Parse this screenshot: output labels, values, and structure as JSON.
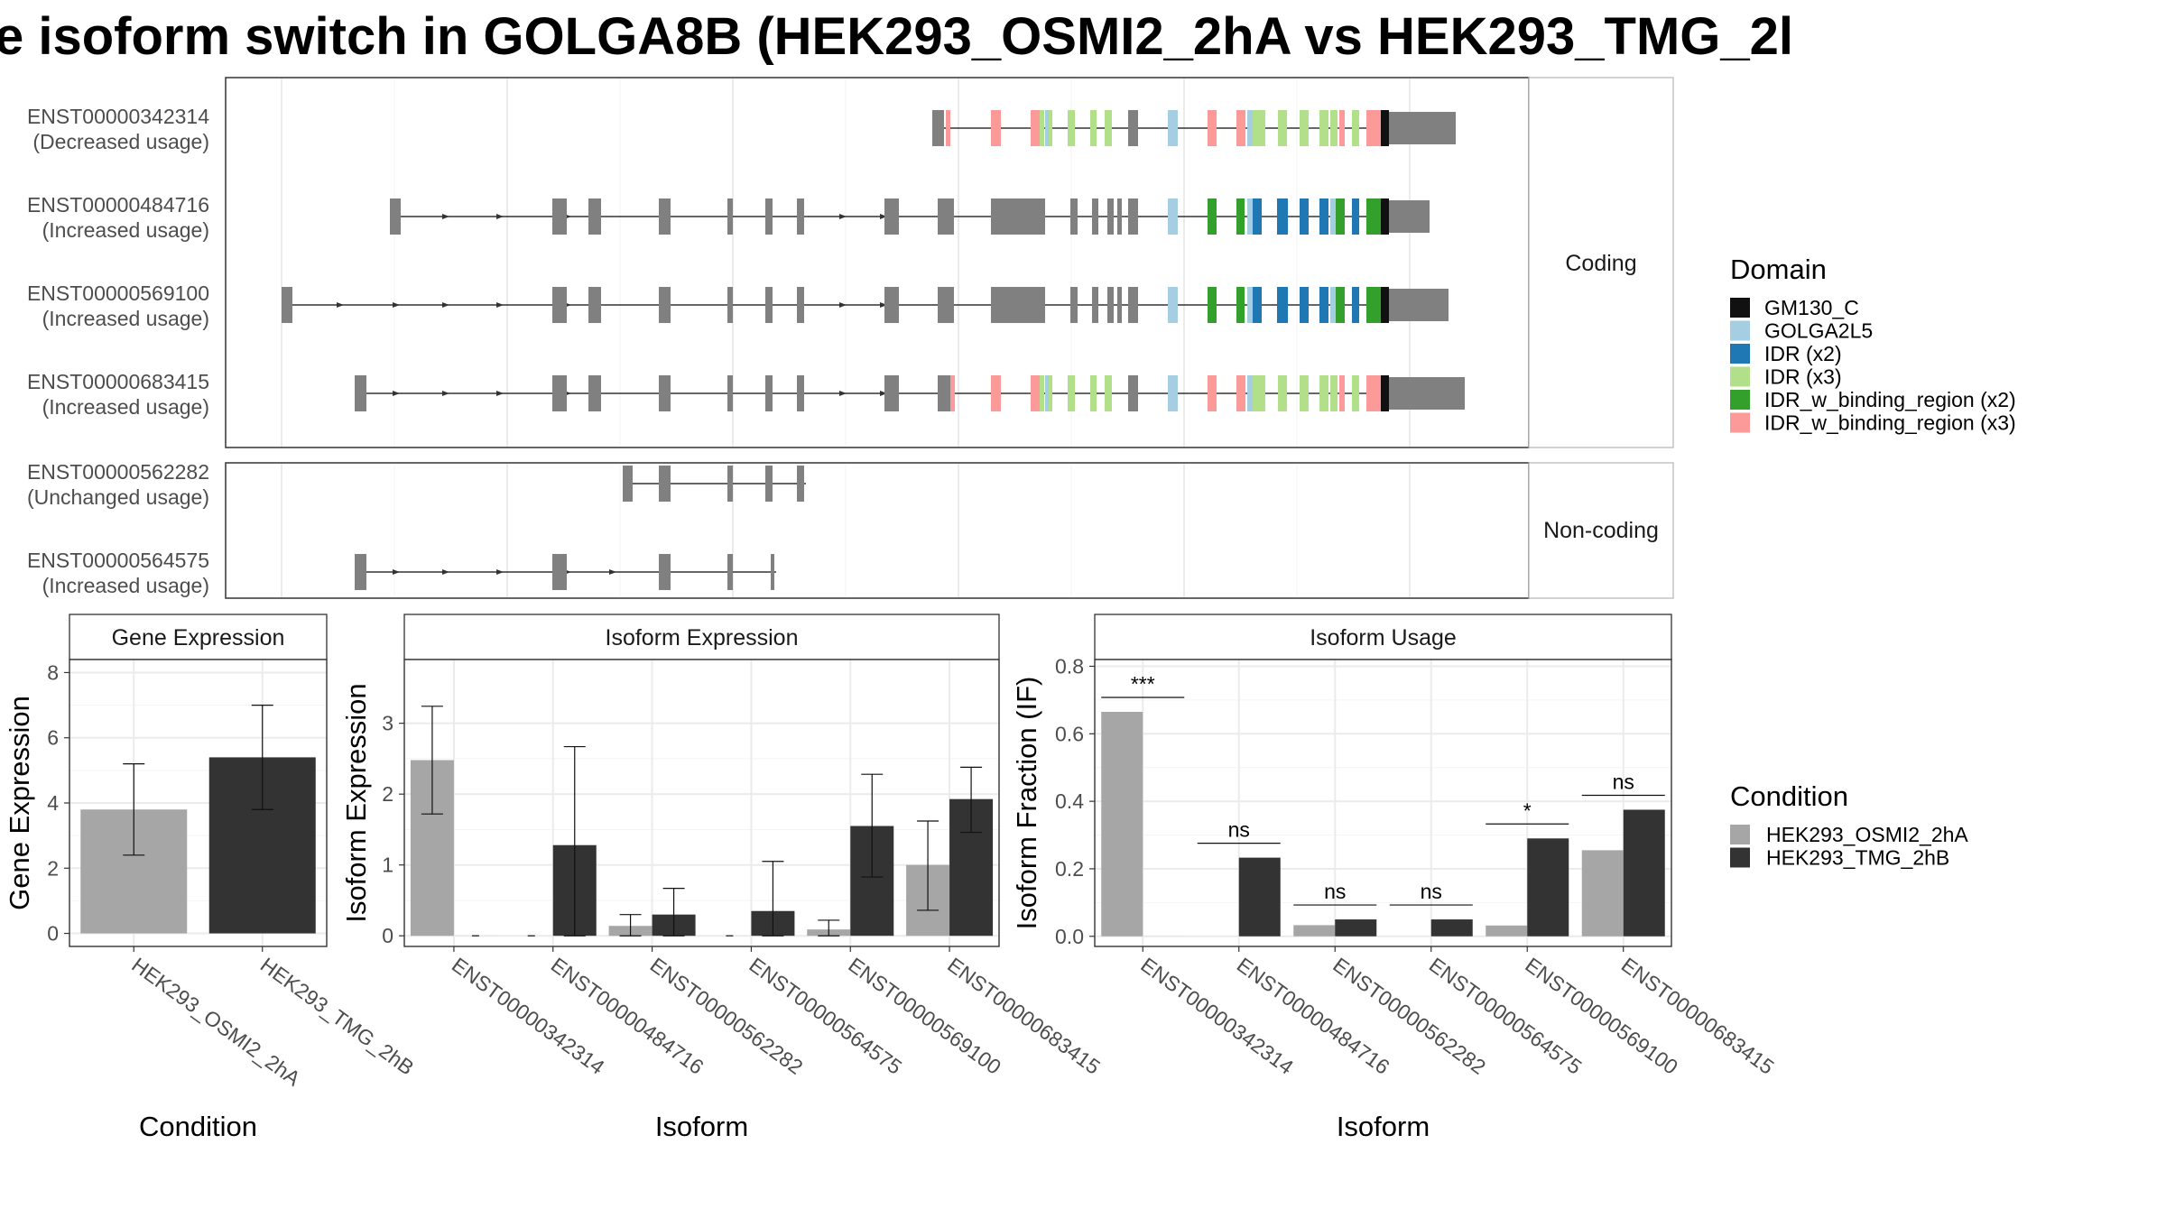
{
  "title": "e isoform switch in GOLGA8B (HEK293_OSMI2_2hA vs HEK293_TMG_2l",
  "colors": {
    "cond1": "#a6a6a6",
    "cond2": "#333333",
    "intron": "#333333",
    "exon": "#808080",
    "grid": "#ebebeb",
    "panel_border": "#333333"
  },
  "structure": {
    "facets": [
      "Coding",
      "Non-coding"
    ],
    "transcripts": [
      {
        "id": "ENST00000342314",
        "usage": "(Decreased usage)",
        "facet": "Coding"
      },
      {
        "id": "ENST00000484716",
        "usage": "(Increased usage)",
        "facet": "Coding"
      },
      {
        "id": "ENST00000569100",
        "usage": "(Increased usage)",
        "facet": "Coding"
      },
      {
        "id": "ENST00000683415",
        "usage": "(Increased usage)",
        "facet": "Coding"
      },
      {
        "id": "ENST00000562282",
        "usage": "(Unchanged usage)",
        "facet": "Non-coding"
      },
      {
        "id": "ENST00000564575",
        "usage": "(Increased usage)",
        "facet": "Non-coding"
      }
    ],
    "domain_legend": {
      "title": "Domain",
      "items": [
        {
          "label": "GM130_C",
          "color": "#111111"
        },
        {
          "label": "GOLGA2L5",
          "color": "#a6cee3"
        },
        {
          "label": "IDR (x2)",
          "color": "#1f78b4"
        },
        {
          "label": "IDR (x3)",
          "color": "#b2df8a"
        },
        {
          "label": "IDR_w_binding_region (x2)",
          "color": "#33a02c"
        },
        {
          "label": "IDR_w_binding_region (x3)",
          "color": "#fb9a99"
        }
      ]
    }
  },
  "chart_data": [
    {
      "type": "bar",
      "title": "Gene Expression",
      "xlabel": "Condition",
      "ylabel": "Gene Expression",
      "categories": [
        "HEK293_OSMI2_2hA",
        "HEK293_TMG_2hB"
      ],
      "values": [
        3.8,
        5.4
      ],
      "errors": [
        [
          2.4,
          5.2
        ],
        [
          3.8,
          7.0
        ]
      ],
      "ylim": [
        -0.4,
        8.4
      ],
      "yticks": [
        "0",
        "2",
        "4",
        "6",
        "8"
      ],
      "grid": true
    },
    {
      "type": "bar",
      "title": "Isoform Expression",
      "xlabel": "Isoform",
      "ylabel": "Isoform Expression",
      "categories": [
        "ENST00000342314",
        "ENST00000484716",
        "ENST00000562282",
        "ENST00000564575",
        "ENST00000569100",
        "ENST00000683415"
      ],
      "series": [
        {
          "name": "HEK293_OSMI2_2hA",
          "values": [
            2.48,
            0.0,
            0.14,
            0.0,
            0.09,
            1.0
          ],
          "errors": [
            [
              1.72,
              3.24
            ],
            [
              0.0,
              0.0
            ],
            [
              0.0,
              0.3
            ],
            [
              0.0,
              0.0
            ],
            [
              0.0,
              0.22
            ],
            [
              0.36,
              1.62
            ]
          ]
        },
        {
          "name": "HEK293_TMG_2hB",
          "values": [
            0.0,
            1.28,
            0.3,
            0.35,
            1.55,
            1.93
          ],
          "errors": [
            [
              0.0,
              0.0
            ],
            [
              0.0,
              2.67
            ],
            [
              0.0,
              0.67
            ],
            [
              0.0,
              1.05
            ],
            [
              0.83,
              2.28
            ],
            [
              1.46,
              2.38
            ]
          ]
        }
      ],
      "ylim": [
        -0.15,
        3.9
      ],
      "yticks": [
        "0",
        "1",
        "2",
        "3"
      ],
      "grid": true
    },
    {
      "type": "bar",
      "title": "Isoform Usage",
      "xlabel": "Isoform",
      "ylabel": "Isoform Fraction (IF)",
      "categories": [
        "ENST00000342314",
        "ENST00000484716",
        "ENST00000562282",
        "ENST00000564575",
        "ENST00000569100",
        "ENST00000683415"
      ],
      "series": [
        {
          "name": "HEK293_OSMI2_2hA",
          "values": [
            0.665,
            0.0,
            0.033,
            0.0,
            0.032,
            0.255
          ]
        },
        {
          "name": "HEK293_TMG_2hB",
          "values": [
            0.0,
            0.233,
            0.05,
            0.05,
            0.29,
            0.375
          ]
        }
      ],
      "significance": [
        "***",
        "ns",
        "ns",
        "ns",
        "*",
        "ns"
      ],
      "ylim": [
        -0.03,
        0.82
      ],
      "yticks": [
        "0.0",
        "0.2",
        "0.4",
        "0.6",
        "0.8"
      ],
      "grid": true
    }
  ],
  "condition_legend": {
    "title": "Condition",
    "items": [
      "HEK293_OSMI2_2hA",
      "HEK293_TMG_2hB"
    ]
  }
}
